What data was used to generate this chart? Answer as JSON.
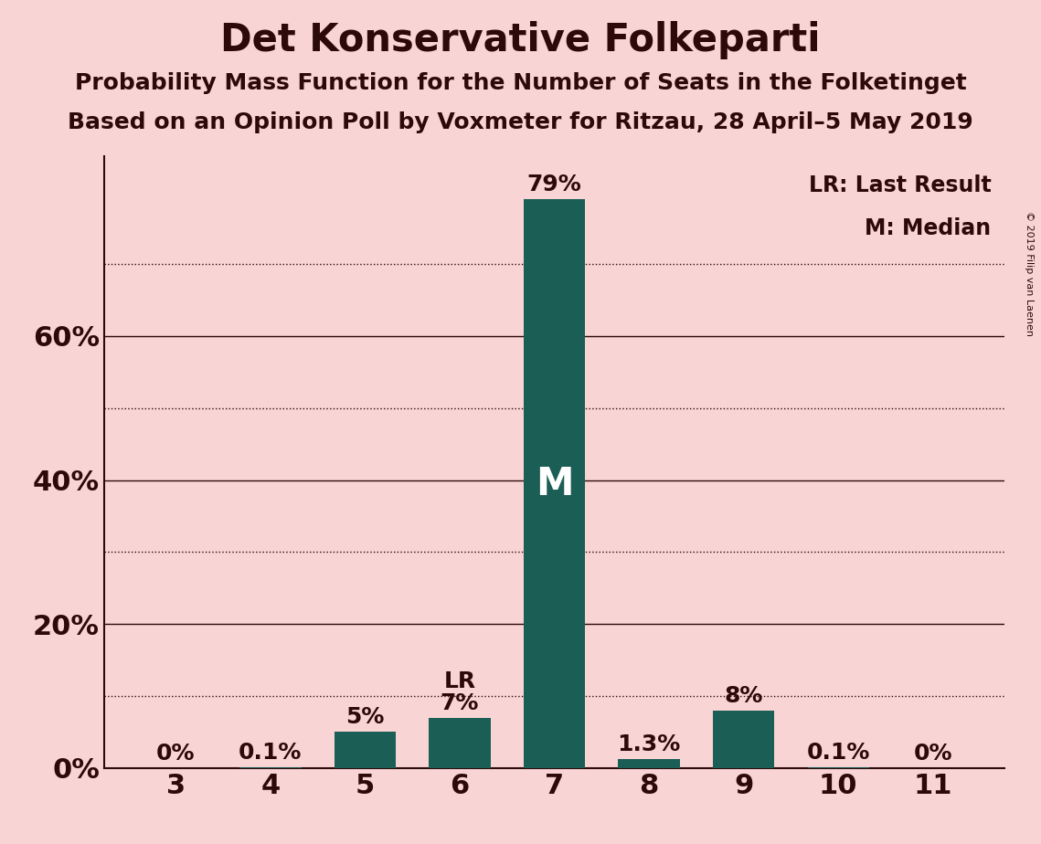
{
  "title": "Det Konservative Folkeparti",
  "subtitle1": "Probability Mass Function for the Number of Seats in the Folketinget",
  "subtitle2": "Based on an Opinion Poll by Voxmeter for Ritzau, 28 April–5 May 2019",
  "copyright": "© 2019 Filip van Laenen",
  "categories": [
    3,
    4,
    5,
    6,
    7,
    8,
    9,
    10,
    11
  ],
  "values": [
    0.0,
    0.1,
    5.0,
    7.0,
    79.0,
    1.3,
    8.0,
    0.1,
    0.0
  ],
  "bar_labels": [
    "0%",
    "0.1%",
    "5%",
    "7%",
    "79%",
    "1.3%",
    "8%",
    "0.1%",
    "0%"
  ],
  "bar_color": "#1a5e55",
  "background_color": "#f9d4d4",
  "text_color": "#2d0a0a",
  "title_fontsize": 30,
  "subtitle_fontsize": 18,
  "label_fontsize": 18,
  "tick_fontsize": 22,
  "yticks": [
    0,
    20,
    40,
    60
  ],
  "dotted_yticks": [
    10,
    30,
    50,
    70
  ],
  "ylim": [
    0,
    85
  ],
  "lr_bar": 6,
  "median_bar": 7,
  "legend_lr": "LR: Last Result",
  "legend_m": "M: Median"
}
